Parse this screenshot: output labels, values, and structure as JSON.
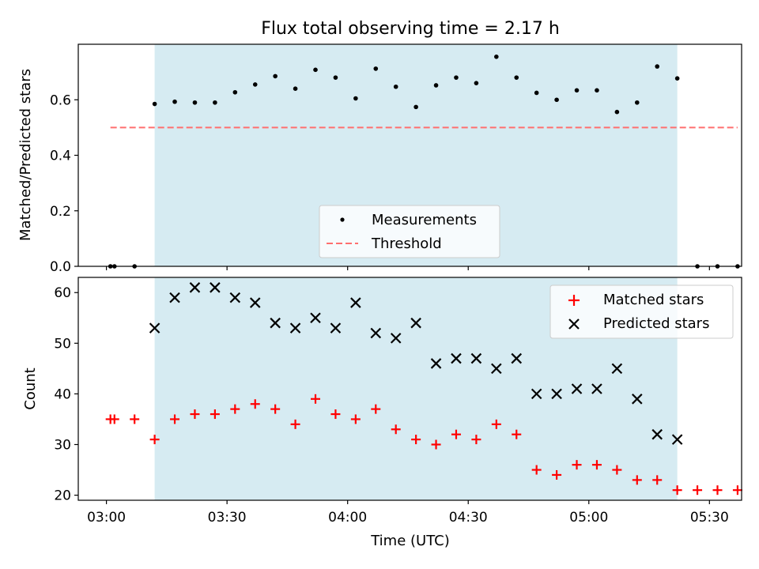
{
  "chart_data": [
    {
      "type": "scatter",
      "title": "Flux total observing time = 2.17 h",
      "xlabel": "",
      "ylabel": "Matched/Predicted stars",
      "xlim": [
        "02:53",
        "05:38"
      ],
      "ylim": [
        0,
        0.8
      ],
      "yticks": [
        0.0,
        0.2,
        0.4,
        0.6
      ],
      "ytick_labels": [
        "0.0",
        "0.2",
        "0.4",
        "0.6"
      ],
      "shaded_region": {
        "from": "03:12",
        "to": "05:22",
        "color": "#add8e6"
      },
      "legend_position": "lower center",
      "series": [
        {
          "name": "Measurements",
          "marker": "dot",
          "color": "#000000",
          "x": [
            "03:01",
            "03:02",
            "03:07",
            "03:12",
            "03:17",
            "03:22",
            "03:27",
            "03:32",
            "03:37",
            "03:42",
            "03:47",
            "03:52",
            "03:57",
            "04:02",
            "04:07",
            "04:12",
            "04:17",
            "04:22",
            "04:27",
            "04:32",
            "04:37",
            "04:42",
            "04:47",
            "04:52",
            "04:57",
            "05:02",
            "05:07",
            "05:12",
            "05:17",
            "05:22",
            "05:27",
            "05:32",
            "05:37"
          ],
          "y": [
            0.0,
            0.0,
            0.0,
            0.585,
            0.593,
            0.59,
            0.59,
            0.627,
            0.655,
            0.685,
            0.64,
            0.708,
            0.68,
            0.605,
            0.712,
            0.647,
            0.574,
            0.652,
            0.68,
            0.66,
            0.755,
            0.68,
            0.625,
            0.6,
            0.634,
            0.634,
            0.556,
            0.59,
            0.72,
            0.677,
            0.0,
            0.0,
            0.0
          ]
        },
        {
          "name": "Threshold",
          "style": "dashed",
          "color": "#ff6f6f",
          "x": [
            "03:01",
            "05:37"
          ],
          "y": [
            0.5,
            0.5
          ]
        }
      ]
    },
    {
      "type": "scatter",
      "title": "",
      "xlabel": "Time (UTC)",
      "ylabel": "Count",
      "xlim": [
        "02:53",
        "05:38"
      ],
      "ylim": [
        19,
        63
      ],
      "yticks": [
        20,
        30,
        40,
        50,
        60
      ],
      "ytick_labels": [
        "20",
        "30",
        "40",
        "50",
        "60"
      ],
      "xticks": [
        "03:00",
        "03:30",
        "04:00",
        "04:30",
        "05:00",
        "05:30"
      ],
      "xtick_labels": [
        "03:00",
        "03:30",
        "04:00",
        "04:30",
        "05:00",
        "05:30"
      ],
      "shaded_region": {
        "from": "03:12",
        "to": "05:22",
        "color": "#add8e6"
      },
      "legend_position": "upper right",
      "series": [
        {
          "name": "Matched stars",
          "marker": "plus",
          "color": "#ff0000",
          "x": [
            "03:01",
            "03:02",
            "03:07",
            "03:12",
            "03:17",
            "03:22",
            "03:27",
            "03:32",
            "03:37",
            "03:42",
            "03:47",
            "03:52",
            "03:57",
            "04:02",
            "04:07",
            "04:12",
            "04:17",
            "04:22",
            "04:27",
            "04:32",
            "04:37",
            "04:42",
            "04:47",
            "04:52",
            "04:57",
            "05:02",
            "05:07",
            "05:12",
            "05:17",
            "05:22",
            "05:27",
            "05:32",
            "05:37"
          ],
          "y": [
            35,
            35,
            35,
            31,
            35,
            36,
            36,
            37,
            38,
            37,
            34,
            39,
            36,
            35,
            37,
            33,
            31,
            30,
            32,
            31,
            34,
            32,
            25,
            24,
            26,
            26,
            25,
            23,
            23,
            21,
            21,
            21,
            21
          ]
        },
        {
          "name": "Predicted stars",
          "marker": "x",
          "color": "#000000",
          "x": [
            "03:12",
            "03:17",
            "03:22",
            "03:27",
            "03:32",
            "03:37",
            "03:42",
            "03:47",
            "03:52",
            "03:57",
            "04:02",
            "04:07",
            "04:12",
            "04:17",
            "04:22",
            "04:27",
            "04:32",
            "04:37",
            "04:42",
            "04:47",
            "04:52",
            "04:57",
            "05:02",
            "05:07",
            "05:12",
            "05:17",
            "05:22"
          ],
          "y": [
            53,
            59,
            61,
            61,
            59,
            58,
            54,
            53,
            55,
            53,
            58,
            52,
            51,
            54,
            46,
            47,
            47,
            45,
            47,
            40,
            40,
            41,
            41,
            45,
            39,
            32,
            31
          ]
        }
      ]
    }
  ]
}
